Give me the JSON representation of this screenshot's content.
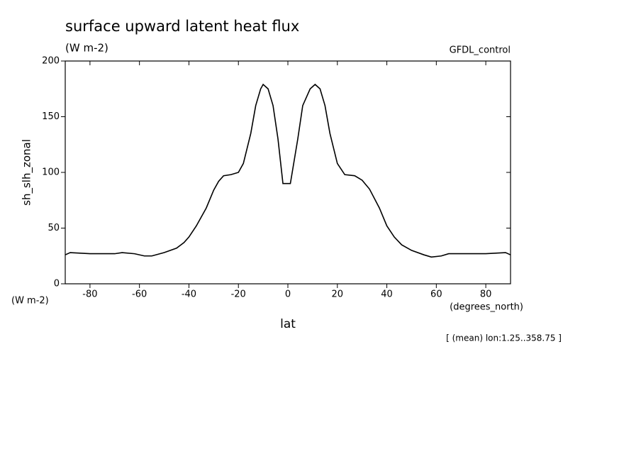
{
  "chart_data": {
    "type": "line",
    "title": "surface upward latent heat flux",
    "subtitle": "(W m-2)",
    "dataset": "GFDL_control",
    "ylabel": "sh_slh_zonal",
    "yunits": "(W m-2)",
    "xlabel": "lat",
    "xunits": "(degrees_north)",
    "note": "[ (mean) lon:1.25..358.75 ]",
    "x": [
      -90,
      -88,
      -80,
      -70,
      -67,
      -62,
      -58,
      -55,
      -50,
      -45,
      -42,
      -40,
      -37,
      -33,
      -30,
      -28,
      -26,
      -23,
      -20,
      -18,
      -15,
      -13,
      -11,
      -10,
      -8,
      -6,
      -4,
      -2,
      0,
      1,
      4,
      6,
      9,
      11,
      13,
      15,
      17,
      20,
      23,
      27,
      30,
      33,
      37,
      40,
      43,
      46,
      50,
      55,
      58,
      62,
      65,
      70,
      80,
      88,
      90
    ],
    "series": [
      {
        "name": "sh_slh_zonal",
        "color": "#000000",
        "values": [
          26,
          28,
          27,
          27,
          28,
          27,
          25,
          25,
          28,
          32,
          37,
          42,
          52,
          68,
          84,
          92,
          97,
          98,
          100,
          108,
          135,
          160,
          175,
          179,
          175,
          160,
          130,
          90,
          90,
          90,
          130,
          160,
          175,
          179,
          175,
          160,
          135,
          108,
          98,
          97,
          93,
          85,
          68,
          52,
          42,
          35,
          30,
          26,
          24,
          25,
          27,
          27,
          27,
          28,
          26
        ]
      }
    ],
    "xlim": [
      -90,
      90
    ],
    "xticks": [
      -80,
      -60,
      -40,
      -20,
      0,
      20,
      40,
      60,
      80
    ],
    "ylim": [
      0,
      200
    ],
    "yticks": [
      0,
      50,
      100,
      150,
      200
    ]
  }
}
